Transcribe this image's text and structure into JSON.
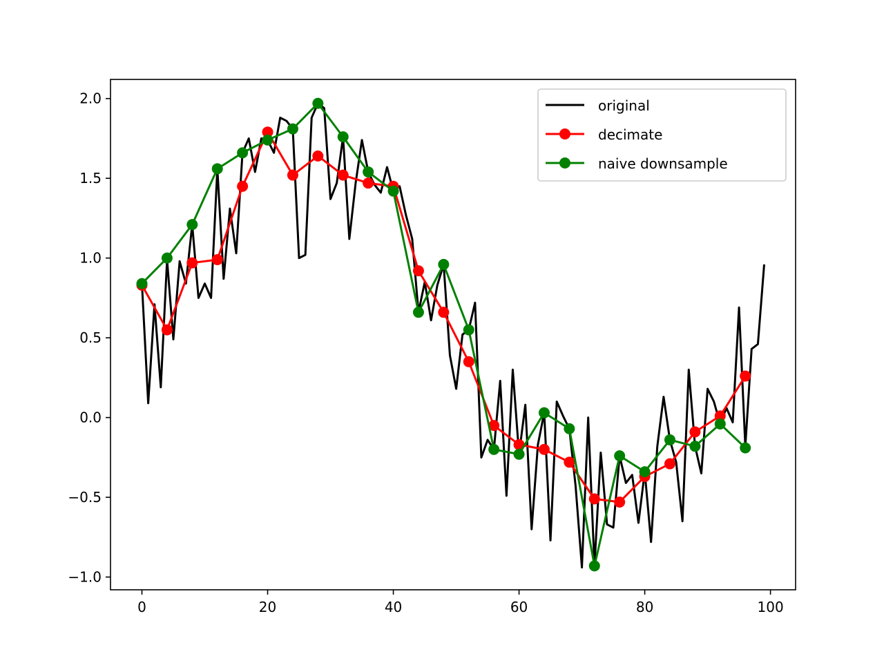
{
  "chart_data": {
    "type": "line",
    "title": "",
    "xlabel": "",
    "ylabel": "",
    "xlim": [
      -5,
      104
    ],
    "ylim": [
      -1.08,
      2.12
    ],
    "grid": false,
    "legend": "top-right",
    "x_ticks": [
      0,
      20,
      40,
      60,
      80,
      100
    ],
    "x_tick_labels": [
      "0",
      "20",
      "40",
      "60",
      "80",
      "100"
    ],
    "y_ticks": [
      -1.0,
      -0.5,
      0.0,
      0.5,
      1.0,
      1.5,
      2.0
    ],
    "y_tick_labels": [
      "−1.0",
      "−0.5",
      "0.0",
      "0.5",
      "1.0",
      "1.5",
      "2.0"
    ],
    "series": [
      {
        "name": "original",
        "color": "#000000",
        "marker": false,
        "x": [
          0,
          1,
          2,
          3,
          4,
          5,
          6,
          7,
          8,
          9,
          10,
          11,
          12,
          13,
          14,
          15,
          16,
          17,
          18,
          19,
          20,
          21,
          22,
          23,
          24,
          25,
          26,
          27,
          28,
          29,
          30,
          31,
          32,
          33,
          34,
          35,
          36,
          37,
          38,
          39,
          40,
          41,
          42,
          43,
          44,
          45,
          46,
          47,
          48,
          49,
          50,
          51,
          52,
          53,
          54,
          55,
          56,
          57,
          58,
          59,
          60,
          61,
          62,
          63,
          64,
          65,
          66,
          67,
          68,
          69,
          70,
          71,
          72,
          73,
          74,
          75,
          76,
          77,
          78,
          79,
          80,
          81,
          82,
          83,
          84,
          85,
          86,
          87,
          88,
          89,
          90,
          91,
          92,
          93,
          94,
          95,
          96,
          97,
          98,
          99
        ],
        "y": [
          0.84,
          0.09,
          0.71,
          0.19,
          0.99,
          0.49,
          0.98,
          0.84,
          1.21,
          0.75,
          0.84,
          0.75,
          1.56,
          0.87,
          1.31,
          1.03,
          1.66,
          1.75,
          1.54,
          1.75,
          1.74,
          1.66,
          1.88,
          1.86,
          1.81,
          1.0,
          1.02,
          1.88,
          1.97,
          1.94,
          1.37,
          1.47,
          1.76,
          1.12,
          1.47,
          1.74,
          1.54,
          1.46,
          1.41,
          1.57,
          1.42,
          1.45,
          1.27,
          1.12,
          0.66,
          0.85,
          0.61,
          0.83,
          0.96,
          0.39,
          0.18,
          0.52,
          0.55,
          0.72,
          -0.25,
          -0.14,
          -0.2,
          0.23,
          -0.49,
          0.3,
          -0.23,
          0.08,
          -0.7,
          -0.17,
          0.03,
          -0.77,
          0.1,
          0.01,
          -0.07,
          -0.43,
          -0.94,
          0.0,
          -0.93,
          -0.22,
          -0.67,
          -0.69,
          -0.24,
          -0.41,
          -0.36,
          -0.66,
          -0.34,
          -0.78,
          -0.18,
          0.13,
          -0.14,
          -0.28,
          -0.65,
          0.3,
          -0.18,
          -0.35,
          0.18,
          0.1,
          -0.04,
          0.06,
          -0.03,
          0.69,
          -0.18,
          0.43,
          0.46,
          0.96
        ]
      },
      {
        "name": "decimate",
        "color": "#ff0000",
        "marker": true,
        "x": [
          0,
          4,
          8,
          12,
          16,
          20,
          24,
          28,
          32,
          36,
          40,
          44,
          48,
          52,
          56,
          60,
          64,
          68,
          72,
          76,
          80,
          84,
          88,
          92,
          96
        ],
        "y": [
          0.83,
          0.55,
          0.97,
          0.99,
          1.45,
          1.79,
          1.52,
          1.64,
          1.52,
          1.47,
          1.45,
          0.92,
          0.66,
          0.35,
          -0.05,
          -0.17,
          -0.2,
          -0.28,
          -0.51,
          -0.53,
          -0.37,
          -0.29,
          -0.09,
          0.01,
          0.26
        ]
      },
      {
        "name": "naive downsample",
        "color": "#008000",
        "marker": true,
        "x": [
          0,
          4,
          8,
          12,
          16,
          20,
          24,
          28,
          32,
          36,
          40,
          44,
          48,
          52,
          56,
          60,
          64,
          68,
          72,
          76,
          80,
          84,
          88,
          92,
          96
        ],
        "y": [
          0.84,
          1.0,
          1.21,
          1.56,
          1.66,
          1.74,
          1.81,
          1.97,
          1.76,
          1.54,
          1.42,
          0.66,
          0.96,
          0.55,
          -0.2,
          -0.23,
          0.03,
          -0.07,
          -0.93,
          -0.24,
          -0.34,
          -0.14,
          -0.18,
          -0.04,
          -0.19
        ]
      }
    ]
  }
}
